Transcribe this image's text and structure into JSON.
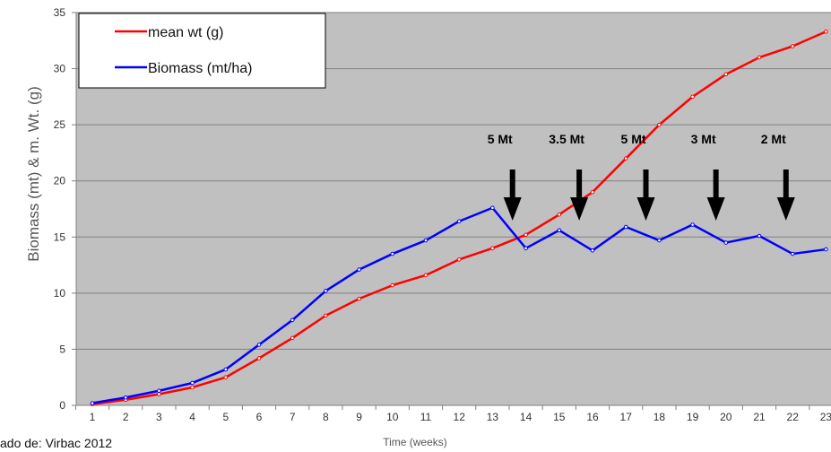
{
  "chart_data": {
    "type": "line",
    "ylabel": "Biomass (mt) & m. Wt. (g)",
    "xlabel": "Time (weeks)",
    "x": [
      1,
      2,
      3,
      4,
      5,
      6,
      7,
      8,
      9,
      10,
      11,
      12,
      13,
      14,
      15,
      16,
      17,
      18,
      19,
      20,
      21,
      22,
      23
    ],
    "ylim": [
      0,
      35
    ],
    "yticks": [
      0,
      5,
      10,
      15,
      20,
      25,
      30,
      35
    ],
    "grid": true,
    "legend_position": "top-left",
    "series": [
      {
        "name": "mean wt (g)",
        "color": "#ff0000",
        "values": [
          0.1,
          0.5,
          1.0,
          1.6,
          2.5,
          4.2,
          6.0,
          8.0,
          9.5,
          10.7,
          11.6,
          13.0,
          14.0,
          15.2,
          17.0,
          19.0,
          22.0,
          25.0,
          27.5,
          29.5,
          31.0,
          32.0,
          33.3
        ]
      },
      {
        "name": "Biomass (mt/ha)",
        "color": "#0000ff",
        "values": [
          0.2,
          0.7,
          1.3,
          2.0,
          3.2,
          5.4,
          7.6,
          10.2,
          12.1,
          13.5,
          14.7,
          16.4,
          17.6,
          14.0,
          15.6,
          13.8,
          15.9,
          14.7,
          16.1,
          14.5,
          15.1,
          13.5,
          13.9
        ]
      }
    ],
    "annotations": [
      {
        "label": "5 Mt",
        "x": 13.6
      },
      {
        "label": "3.5 Mt",
        "x": 15.6
      },
      {
        "label": "5 Mt",
        "x": 17.6
      },
      {
        "label": "3 Mt",
        "x": 19.7
      },
      {
        "label": "2 Mt",
        "x": 21.8
      }
    ]
  },
  "source_text": "ado de: Virbac 2012",
  "colors": {
    "plot_bg": "#c0c0c0",
    "grid": "#808080",
    "axis": "#808080"
  }
}
